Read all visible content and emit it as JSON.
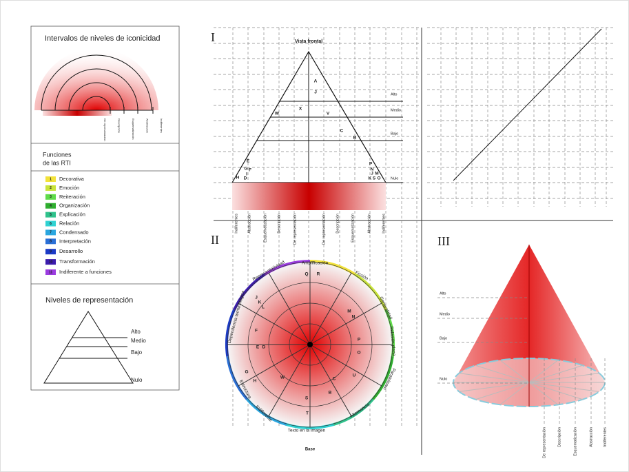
{
  "legend_panel": {
    "iconicity_title": "Intervalos de niveles de iconicidad",
    "iconicity_scale": [
      "De representación",
      "Descripción",
      "Esquematización",
      "Abstracción",
      "Indiferentes"
    ],
    "functions_title": [
      "Funciones",
      "de las RTI"
    ],
    "functions": [
      {
        "number": 1,
        "label": "Decorativa",
        "color": "#f2e23a"
      },
      {
        "number": 2,
        "label": "Emoción",
        "color": "#c9e43a"
      },
      {
        "number": 3,
        "label": "Reiteración",
        "color": "#5fdc4a"
      },
      {
        "number": 4,
        "label": "Organización",
        "color": "#2fae2f"
      },
      {
        "number": 5,
        "label": "Explicación",
        "color": "#2fc28c"
      },
      {
        "number": 6,
        "label": "Relación",
        "color": "#2fd2d2"
      },
      {
        "number": 7,
        "label": "Condensado",
        "color": "#2aa6df"
      },
      {
        "number": 8,
        "label": "Interpretación",
        "color": "#2a6fd6"
      },
      {
        "number": 9,
        "label": "Desarrollo",
        "color": "#1b3ac6"
      },
      {
        "number": 10,
        "label": "Transformación",
        "color": "#3b1bad"
      },
      {
        "number": 11,
        "label": "Indiferente a funciones",
        "color": "#9b3be0"
      }
    ],
    "levels_title": "Niveles de representación",
    "levels": [
      "Alto",
      "Medio",
      "Bajo",
      "Nulo"
    ]
  },
  "view_I": {
    "numeral": "I",
    "title": "Vista frontal",
    "letters": [
      "A",
      "J",
      "X",
      "W",
      "V",
      "C",
      "B",
      "E",
      "G",
      "F",
      "I",
      "D",
      "H",
      "P",
      "N",
      "J",
      "M",
      "K",
      "S",
      "O"
    ],
    "levels": [
      "Alto",
      "Medio",
      "Bajo",
      "Nulo"
    ],
    "scale": [
      "Indiferentes",
      "Abstracción",
      "Esquematización",
      "Descripción",
      "De representación",
      "De representación",
      "Descripción",
      "Esquematización",
      "Abstracción",
      "Indiferentes"
    ]
  },
  "view_II": {
    "numeral": "II",
    "ring_labels": [
      "Amplificación",
      "Ficción",
      "Generalidad",
      "Relación plena",
      "Paralelismo",
      "Alternancia",
      "Texto en la imagen",
      "Indiferente",
      "Estructura",
      "Dependencia terminológica",
      "Representatividad"
    ],
    "letters": [
      "Q",
      "R",
      "J",
      "K",
      "L",
      "M",
      "N",
      "F",
      "E",
      "D",
      "G",
      "H",
      "P",
      "O",
      "U",
      "C",
      "B",
      "S",
      "T",
      "W"
    ],
    "base": "Base"
  },
  "view_III": {
    "numeral": "III",
    "levels": [
      "Alto",
      "Medio",
      "Bajo",
      "Nulo"
    ],
    "scale": [
      "De representación",
      "Descripción",
      "Esquematización",
      "Abstracción",
      "Indiferentes"
    ]
  }
}
